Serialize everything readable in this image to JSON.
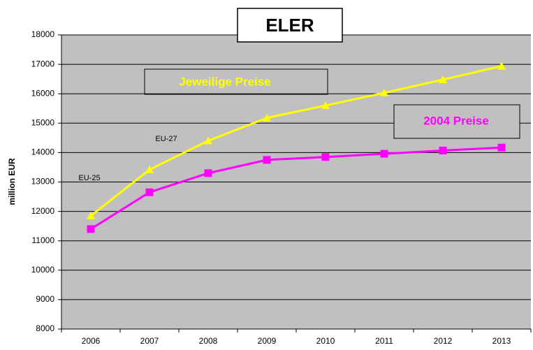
{
  "chart_data": {
    "type": "line",
    "title": "ELER",
    "y_label": "million EUR",
    "categories": [
      "2006",
      "2007",
      "2008",
      "2009",
      "2010",
      "2011",
      "2012",
      "2013"
    ],
    "series": [
      {
        "name": "Jeweilige Preise",
        "color": "#ffff00",
        "marker": "triangle",
        "values": [
          11850,
          13420,
          14400,
          15180,
          15600,
          16030,
          16480,
          16940
        ]
      },
      {
        "name": "2004 Preise",
        "color": "#ff00ff",
        "marker": "square",
        "values": [
          11400,
          12650,
          13300,
          13750,
          13850,
          13960,
          14070,
          14170
        ]
      }
    ],
    "annotations": [
      "EU-27",
      "EU-25"
    ],
    "ylim": [
      8000,
      18000
    ],
    "yticks": [
      8000,
      9000,
      10000,
      11000,
      12000,
      13000,
      14000,
      15000,
      16000,
      17000,
      18000
    ],
    "grid": true,
    "background": "#c0c0c0"
  }
}
